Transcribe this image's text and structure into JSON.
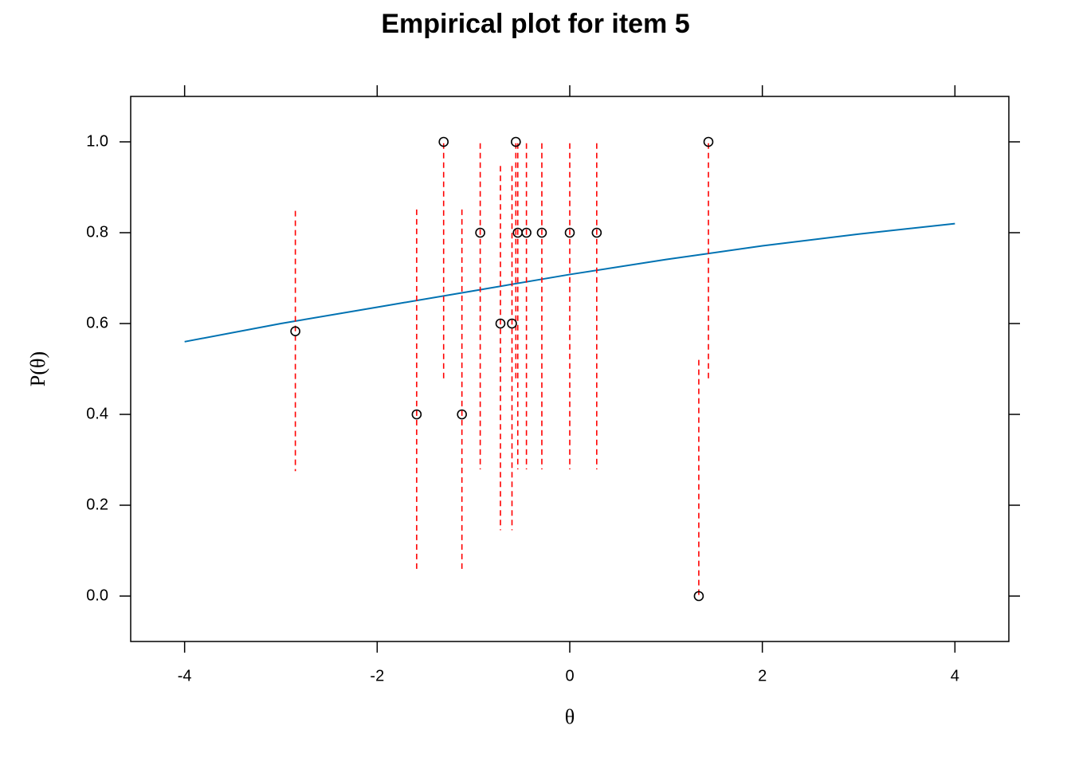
{
  "chart_data": {
    "type": "scatter",
    "title": "Empirical plot for item 5",
    "xlabel": "θ",
    "ylabel": "P(θ)",
    "xlim": [
      -4.56,
      4.56
    ],
    "ylim": [
      -0.1,
      1.1
    ],
    "xticks": [
      -4,
      -2,
      0,
      2,
      4
    ],
    "yticks": [
      {
        "value": 0,
        "label": "0.0"
      },
      0.2,
      0.4,
      0.6,
      0.8,
      {
        "value": 1,
        "label": "1.0"
      }
    ],
    "x": [
      -2.85,
      -1.59,
      -1.31,
      -1.12,
      -0.93,
      -0.72,
      -0.6,
      -0.56,
      -0.54,
      -0.45,
      -0.29,
      0,
      0.28,
      1.34,
      1.44
    ],
    "values": [
      0.583,
      0.4,
      1,
      0.4,
      0.8,
      0.6,
      0.6,
      1,
      0.8,
      0.8,
      0.8,
      0.8,
      0.8,
      0,
      1
    ],
    "ci_upper": [
      0.848,
      0.851,
      0.997,
      0.851,
      0.997,
      0.947,
      0.947,
      0.997,
      0.997,
      0.997,
      0.997,
      0.997,
      0.997,
      0.52,
      0.997
    ],
    "ci_lower": [
      0.275,
      0.051,
      0.475,
      0.051,
      0.279,
      0.145,
      0.145,
      0.475,
      0.279,
      0.279,
      0.279,
      0.279,
      0.279,
      0,
      0.475
    ],
    "marker_color": "#000000",
    "error_color": "#ff0000",
    "line": {
      "x": [
        -4,
        -3,
        -2,
        -1,
        0,
        1,
        2,
        3,
        4
      ],
      "values": [
        0.56,
        0.6,
        0.636,
        0.672,
        0.708,
        0.741,
        0.771,
        0.797,
        0.82
      ],
      "color": "#0072b2"
    }
  }
}
